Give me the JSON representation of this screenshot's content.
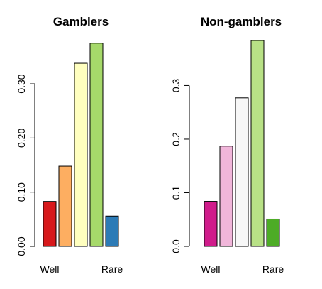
{
  "chart_data": [
    {
      "type": "bar",
      "title": "Gamblers",
      "categories": [
        "Well",
        "",
        "",
        "",
        "Rare"
      ],
      "values": [
        0.083,
        0.148,
        0.338,
        0.375,
        0.056
      ],
      "colors": [
        "#d7191c",
        "#fdae61",
        "#ffffbf",
        "#a6d96a",
        "#2c7bb6"
      ],
      "ylim": [
        0,
        0.38
      ],
      "yticks": [
        0.0,
        0.1,
        0.2,
        0.3
      ],
      "ytick_labels": [
        "0.00",
        "0.10",
        "0.20",
        "0.30"
      ],
      "xlabel": "",
      "ylabel": "",
      "grid": false
    },
    {
      "type": "bar",
      "title": "Non-gamblers",
      "categories": [
        "Well",
        "",
        "",
        "",
        "Rare"
      ],
      "values": [
        0.084,
        0.187,
        0.277,
        0.384,
        0.051
      ],
      "colors": [
        "#d01c8b",
        "#f1b6da",
        "#f7f7f7",
        "#b8e186",
        "#4dac26"
      ],
      "ylim": [
        0,
        0.384
      ],
      "yticks": [
        0.0,
        0.1,
        0.2,
        0.3
      ],
      "ytick_labels": [
        "0.0",
        "0.1",
        "0.2",
        "0.3"
      ],
      "xlabel": "",
      "ylabel": "",
      "grid": false
    }
  ]
}
